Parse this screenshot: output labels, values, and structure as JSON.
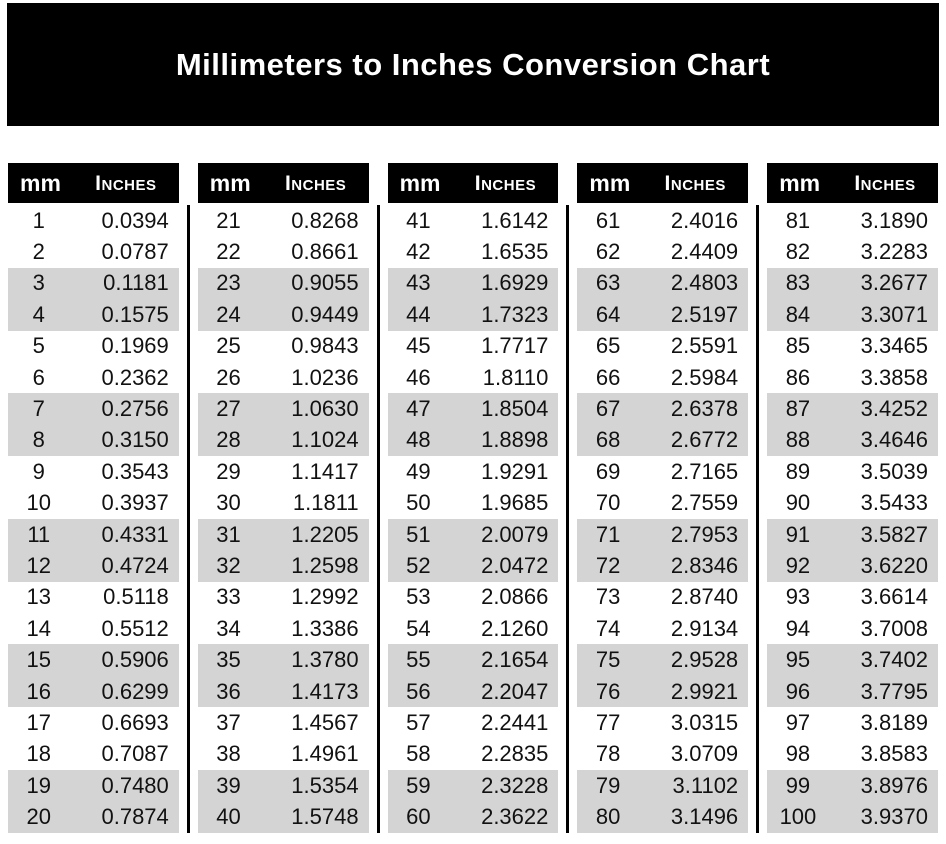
{
  "title": "Millimeters to Inches Conversion Chart",
  "columns": {
    "mm_label": "mm",
    "inches_label": "Inches"
  },
  "colors": {
    "header_bg": "#000000",
    "header_text": "#ffffff",
    "band": "#d4d4d4",
    "text": "#111111",
    "page_bg": "#ffffff"
  },
  "groups": [
    {
      "rows": [
        {
          "mm": "1",
          "in": "0.0394"
        },
        {
          "mm": "2",
          "in": "0.0787"
        },
        {
          "mm": "3",
          "in": "0.1181"
        },
        {
          "mm": "4",
          "in": "0.1575"
        },
        {
          "mm": "5",
          "in": "0.1969"
        },
        {
          "mm": "6",
          "in": "0.2362"
        },
        {
          "mm": "7",
          "in": "0.2756"
        },
        {
          "mm": "8",
          "in": "0.3150"
        },
        {
          "mm": "9",
          "in": "0.3543"
        },
        {
          "mm": "10",
          "in": "0.3937"
        },
        {
          "mm": "11",
          "in": "0.4331"
        },
        {
          "mm": "12",
          "in": "0.4724"
        },
        {
          "mm": "13",
          "in": "0.5118"
        },
        {
          "mm": "14",
          "in": "0.5512"
        },
        {
          "mm": "15",
          "in": "0.5906"
        },
        {
          "mm": "16",
          "in": "0.6299"
        },
        {
          "mm": "17",
          "in": "0.6693"
        },
        {
          "mm": "18",
          "in": "0.7087"
        },
        {
          "mm": "19",
          "in": "0.7480"
        },
        {
          "mm": "20",
          "in": "0.7874"
        }
      ]
    },
    {
      "rows": [
        {
          "mm": "21",
          "in": "0.8268"
        },
        {
          "mm": "22",
          "in": "0.8661"
        },
        {
          "mm": "23",
          "in": "0.9055"
        },
        {
          "mm": "24",
          "in": "0.9449"
        },
        {
          "mm": "25",
          "in": "0.9843"
        },
        {
          "mm": "26",
          "in": "1.0236"
        },
        {
          "mm": "27",
          "in": "1.0630"
        },
        {
          "mm": "28",
          "in": "1.1024"
        },
        {
          "mm": "29",
          "in": "1.1417"
        },
        {
          "mm": "30",
          "in": "1.1811"
        },
        {
          "mm": "31",
          "in": "1.2205"
        },
        {
          "mm": "32",
          "in": "1.2598"
        },
        {
          "mm": "33",
          "in": "1.2992"
        },
        {
          "mm": "34",
          "in": "1.3386"
        },
        {
          "mm": "35",
          "in": "1.3780"
        },
        {
          "mm": "36",
          "in": "1.4173"
        },
        {
          "mm": "37",
          "in": "1.4567"
        },
        {
          "mm": "38",
          "in": "1.4961"
        },
        {
          "mm": "39",
          "in": "1.5354"
        },
        {
          "mm": "40",
          "in": "1.5748"
        }
      ]
    },
    {
      "rows": [
        {
          "mm": "41",
          "in": "1.6142"
        },
        {
          "mm": "42",
          "in": "1.6535"
        },
        {
          "mm": "43",
          "in": "1.6929"
        },
        {
          "mm": "44",
          "in": "1.7323"
        },
        {
          "mm": "45",
          "in": "1.7717"
        },
        {
          "mm": "46",
          "in": "1.8110"
        },
        {
          "mm": "47",
          "in": "1.8504"
        },
        {
          "mm": "48",
          "in": "1.8898"
        },
        {
          "mm": "49",
          "in": "1.9291"
        },
        {
          "mm": "50",
          "in": "1.9685"
        },
        {
          "mm": "51",
          "in": "2.0079"
        },
        {
          "mm": "52",
          "in": "2.0472"
        },
        {
          "mm": "53",
          "in": "2.0866"
        },
        {
          "mm": "54",
          "in": "2.1260"
        },
        {
          "mm": "55",
          "in": "2.1654"
        },
        {
          "mm": "56",
          "in": "2.2047"
        },
        {
          "mm": "57",
          "in": "2.2441"
        },
        {
          "mm": "58",
          "in": "2.2835"
        },
        {
          "mm": "59",
          "in": "2.3228"
        },
        {
          "mm": "60",
          "in": "2.3622"
        }
      ]
    },
    {
      "rows": [
        {
          "mm": "61",
          "in": "2.4016"
        },
        {
          "mm": "62",
          "in": "2.4409"
        },
        {
          "mm": "63",
          "in": "2.4803"
        },
        {
          "mm": "64",
          "in": "2.5197"
        },
        {
          "mm": "65",
          "in": "2.5591"
        },
        {
          "mm": "66",
          "in": "2.5984"
        },
        {
          "mm": "67",
          "in": "2.6378"
        },
        {
          "mm": "68",
          "in": "2.6772"
        },
        {
          "mm": "69",
          "in": "2.7165"
        },
        {
          "mm": "70",
          "in": "2.7559"
        },
        {
          "mm": "71",
          "in": "2.7953"
        },
        {
          "mm": "72",
          "in": "2.8346"
        },
        {
          "mm": "73",
          "in": "2.8740"
        },
        {
          "mm": "74",
          "in": "2.9134"
        },
        {
          "mm": "75",
          "in": "2.9528"
        },
        {
          "mm": "76",
          "in": "2.9921"
        },
        {
          "mm": "77",
          "in": "3.0315"
        },
        {
          "mm": "78",
          "in": "3.0709"
        },
        {
          "mm": "79",
          "in": "3.1102"
        },
        {
          "mm": "80",
          "in": "3.1496"
        }
      ]
    },
    {
      "rows": [
        {
          "mm": "81",
          "in": "3.1890"
        },
        {
          "mm": "82",
          "in": "3.2283"
        },
        {
          "mm": "83",
          "in": "3.2677"
        },
        {
          "mm": "84",
          "in": "3.3071"
        },
        {
          "mm": "85",
          "in": "3.3465"
        },
        {
          "mm": "86",
          "in": "3.3858"
        },
        {
          "mm": "87",
          "in": "3.4252"
        },
        {
          "mm": "88",
          "in": "3.4646"
        },
        {
          "mm": "89",
          "in": "3.5039"
        },
        {
          "mm": "90",
          "in": "3.5433"
        },
        {
          "mm": "91",
          "in": "3.5827"
        },
        {
          "mm": "92",
          "in": "3.6220"
        },
        {
          "mm": "93",
          "in": "3.6614"
        },
        {
          "mm": "94",
          "in": "3.7008"
        },
        {
          "mm": "95",
          "in": "3.7402"
        },
        {
          "mm": "96",
          "in": "3.7795"
        },
        {
          "mm": "97",
          "in": "3.8189"
        },
        {
          "mm": "98",
          "in": "3.8583"
        },
        {
          "mm": "99",
          "in": "3.8976"
        },
        {
          "mm": "100",
          "in": "3.9370"
        }
      ]
    }
  ]
}
